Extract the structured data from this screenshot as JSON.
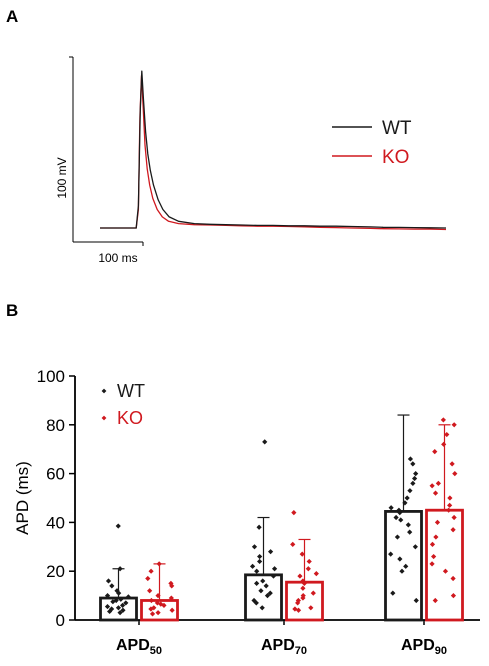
{
  "panels": {
    "a": {
      "label": "A"
    },
    "b": {
      "label": "B"
    }
  },
  "colors": {
    "wt": "#1a1a1a",
    "ko": "#d0191f"
  },
  "chart_data": [
    {
      "type": "line",
      "panel": "A",
      "scale_bars": {
        "voltage": "100 mV",
        "time": "100 ms"
      },
      "legend_position": "right",
      "series": [
        {
          "name": "WT",
          "color": "#1a1a1a",
          "x": [
            0,
            115,
            122,
            128,
            133,
            138,
            145,
            152,
            160,
            170,
            185,
            200,
            220,
            250,
            300,
            350,
            400,
            450,
            500,
            550,
            600,
            650,
            700,
            750,
            800,
            860,
            900,
            950,
            1000,
            1050,
            1100
          ],
          "y": [
            0,
            0,
            30,
            160,
            212,
            175,
            130,
            100,
            78,
            58,
            38,
            25,
            15,
            9,
            6,
            5,
            4.5,
            4,
            3.5,
            3.5,
            3,
            3,
            2.5,
            2.5,
            2,
            1.5,
            1,
            0.8,
            0.5,
            0.3,
            0
          ]
        },
        {
          "name": "KO",
          "color": "#d0191f",
          "x": [
            0,
            115,
            122,
            127,
            132,
            137,
            143,
            150,
            158,
            168,
            182,
            198,
            218,
            250,
            300,
            350,
            400,
            450,
            500,
            550,
            600,
            650,
            700,
            750,
            800,
            860,
            900,
            950,
            1000,
            1050,
            1100
          ],
          "y": [
            0,
            0,
            25,
            150,
            206,
            165,
            112,
            80,
            58,
            40,
            25,
            15,
            9,
            6,
            4.5,
            4,
            3.5,
            3,
            2.5,
            2.5,
            2,
            1.5,
            1,
            0.5,
            0,
            -0.5,
            -1,
            -1.2,
            -1.5,
            -1.5,
            -2
          ]
        }
      ]
    },
    {
      "type": "bar",
      "panel": "B",
      "categories": [
        "APD50",
        "APD70",
        "APD90"
      ],
      "category_labels": [
        {
          "base": "APD",
          "sub": "50"
        },
        {
          "base": "APD",
          "sub": "70"
        },
        {
          "base": "APD",
          "sub": "90"
        }
      ],
      "ylabel": "APD (ms)",
      "ylim": [
        0,
        100
      ],
      "yticks": [
        "0",
        "20",
        "40",
        "60",
        "80",
        "100"
      ],
      "legend_position": "top-left",
      "series": [
        {
          "name": "WT",
          "color": "#1a1a1a",
          "values": [
            9,
            18.5,
            44.5
          ],
          "err_upper": [
            21,
            42,
            84
          ],
          "points": [
            [
              38.5,
              21,
              16,
              14,
              12,
              11,
              10,
              9.5,
              8.5,
              8,
              7.5,
              7,
              6,
              5.5,
              5,
              4.5,
              4,
              3.5,
              3
            ],
            [
              73,
              38,
              30,
              28,
              26,
              24,
              22,
              21,
              20,
              18,
              16,
              15,
              14,
              12,
              11,
              10,
              8,
              7,
              5
            ],
            [
              66,
              64,
              60,
              58,
              56,
              53,
              50,
              48,
              46,
              45,
              44,
              42,
              41,
              39,
              36,
              34,
              30,
              27,
              25,
              22,
              20,
              11,
              8
            ]
          ]
        },
        {
          "name": "KO",
          "color": "#d0191f",
          "values": [
            8,
            15.5,
            45
          ],
          "err_upper": [
            23,
            33,
            80
          ],
          "points": [
            [
              23,
              20,
              17,
              15,
              14,
              12,
              10,
              9,
              8,
              7,
              6.5,
              6,
              5,
              4.5,
              4,
              3,
              2.5
            ],
            [
              44,
              31,
              27,
              24,
              21,
              19,
              18,
              16,
              15,
              13,
              11,
              10,
              9,
              8,
              7,
              5,
              4.5,
              4
            ],
            [
              82,
              80,
              76,
              72,
              69,
              64,
              60,
              56,
              55,
              52,
              50,
              47,
              45,
              42,
              40,
              37,
              34,
              31,
              26,
              23,
              20,
              17,
              10,
              8
            ]
          ]
        }
      ]
    }
  ]
}
